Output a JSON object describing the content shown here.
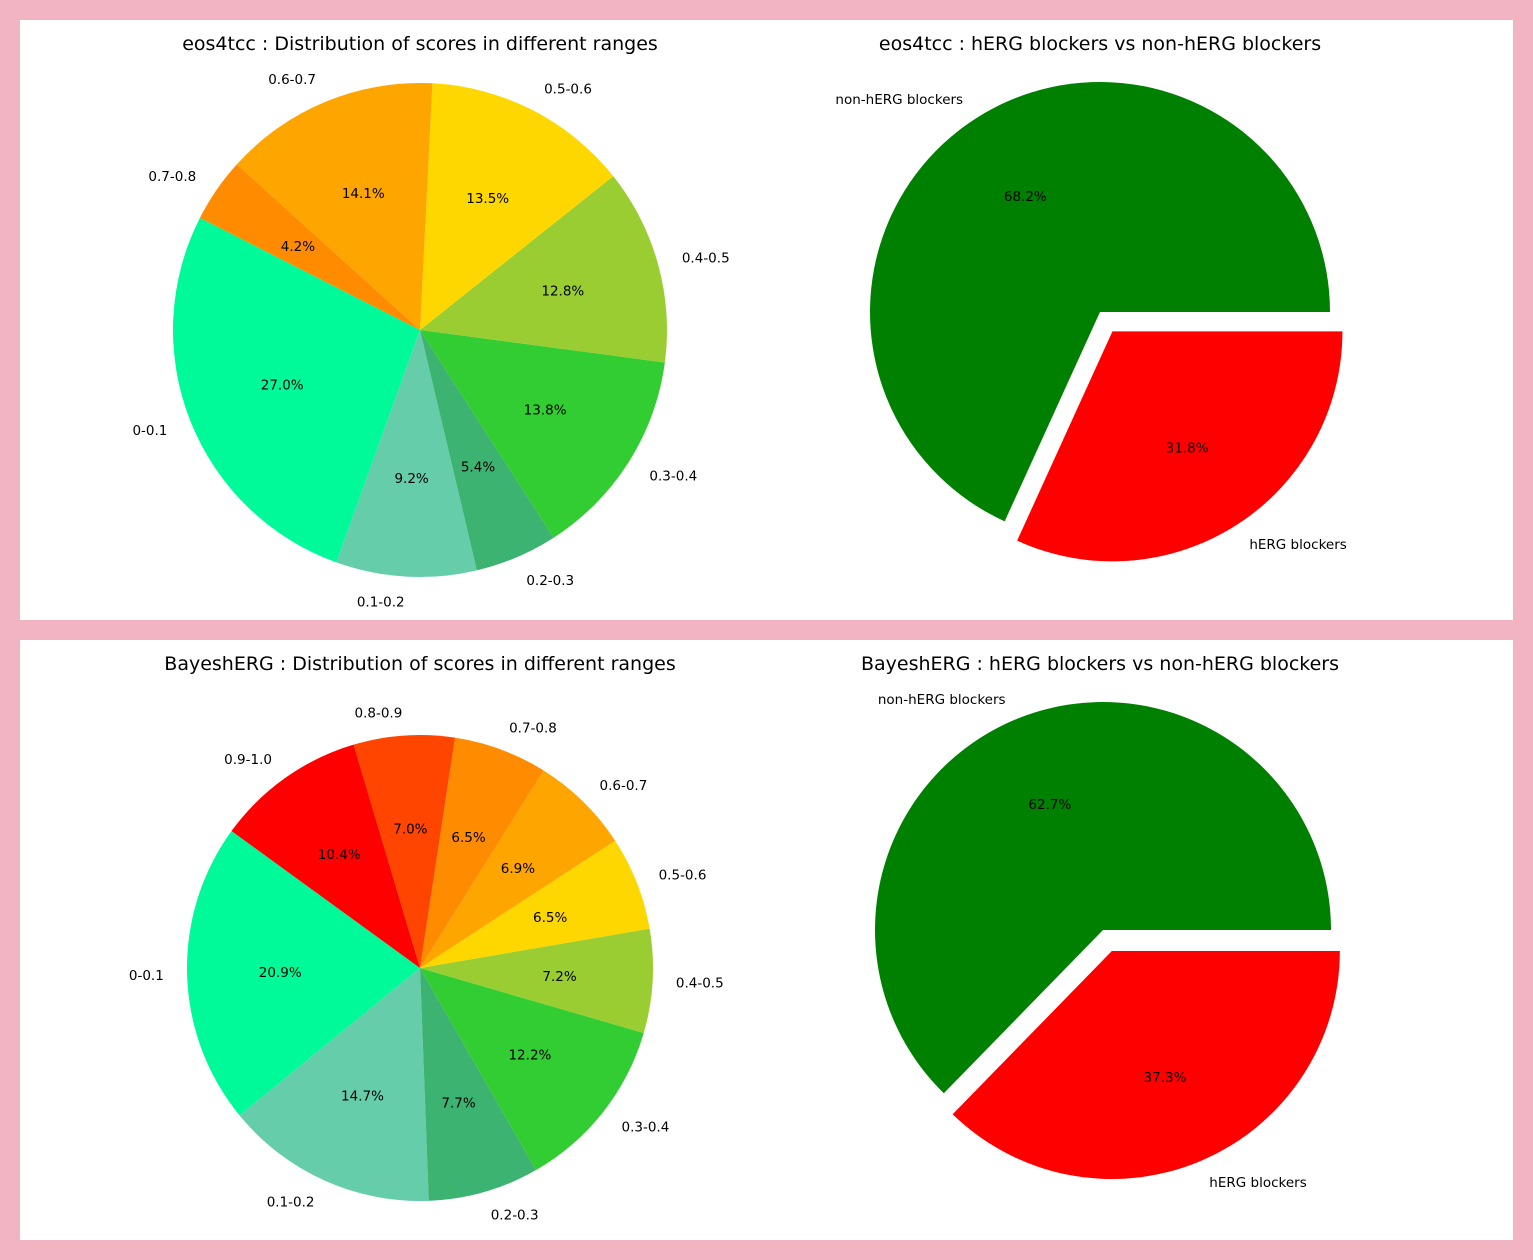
{
  "chart_data": [
    {
      "type": "pie",
      "title": "eos4tcc : Distribution of scores in different ranges",
      "categories": [
        "0-0.1",
        "0.1-0.2",
        "0.2-0.3",
        "0.3-0.4",
        "0.4-0.5",
        "0.5-0.6",
        "0.6-0.7",
        "0.7-0.8"
      ],
      "values": [
        27.0,
        9.2,
        5.4,
        13.8,
        12.8,
        13.5,
        14.1,
        4.2
      ],
      "labels_pct": [
        "27.0%",
        "9.2%",
        "5.4%",
        "13.8%",
        "12.8%",
        "13.5%",
        "14.1%",
        "4.2%"
      ],
      "colors": [
        "#00fa9a",
        "#66cdaa",
        "#3cb371",
        "#32cd32",
        "#9acd32",
        "#ffd700",
        "#ffa500",
        "#ff8c00"
      ]
    },
    {
      "type": "pie",
      "title": "eos4tcc : hERG blockers vs non-hERG blockers",
      "categories": [
        "non-hERG blockers",
        "hERG blockers"
      ],
      "values": [
        68.2,
        31.8
      ],
      "labels_pct": [
        "68.2%",
        "31.8%"
      ],
      "colors": [
        "#008000",
        "#ff0000"
      ],
      "explode": [
        0,
        0.1
      ]
    },
    {
      "type": "pie",
      "title": "BayeshERG : Distribution of scores in different ranges",
      "categories": [
        "0-0.1",
        "0.1-0.2",
        "0.2-0.3",
        "0.3-0.4",
        "0.4-0.5",
        "0.5-0.6",
        "0.6-0.7",
        "0.7-0.8",
        "0.8-0.9",
        "0.9-1.0"
      ],
      "values": [
        20.9,
        14.7,
        7.7,
        12.2,
        7.2,
        6.5,
        6.9,
        6.5,
        7.0,
        10.4
      ],
      "labels_pct": [
        "20.9%",
        "14.7%",
        "7.7%",
        "12.2%",
        "7.2%",
        "6.5%",
        "6.9%",
        "6.5%",
        "7.0%",
        "10.4%"
      ],
      "colors": [
        "#00fa9a",
        "#66cdaa",
        "#3cb371",
        "#32cd32",
        "#9acd32",
        "#ffd700",
        "#ffa500",
        "#ff8c00",
        "#ff4500",
        "#ff0000"
      ]
    },
    {
      "type": "pie",
      "title": "BayeshERG : hERG blockers vs non-hERG blockers",
      "categories": [
        "non-hERG blockers",
        "hERG blockers"
      ],
      "values": [
        62.7,
        37.3
      ],
      "labels_pct": [
        "62.7%",
        "37.3%"
      ],
      "colors": [
        "#008000",
        "#ff0000"
      ],
      "explode": [
        0,
        0.1
      ]
    }
  ]
}
